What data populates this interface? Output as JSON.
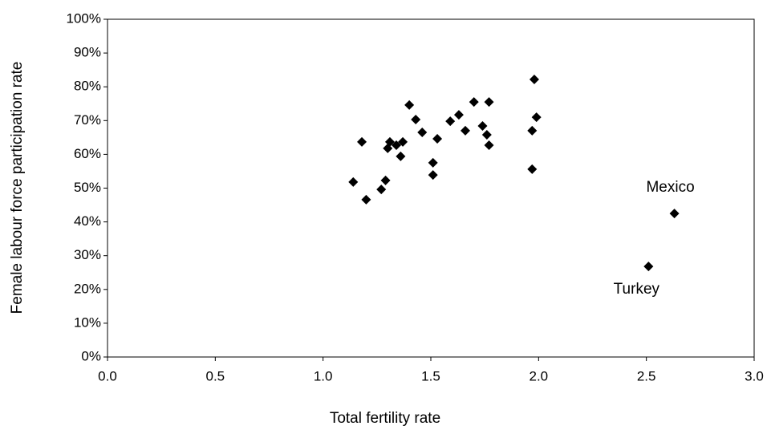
{
  "chart_data": {
    "type": "scatter",
    "x_label": "Total fertility rate",
    "y_label": "Female labour force participation rate",
    "series": [
      {
        "color": "#000000",
        "x": [
          1.14,
          1.18,
          1.2,
          1.27,
          1.29,
          1.31,
          1.3,
          1.34,
          1.37,
          1.36,
          1.4,
          1.43,
          1.46,
          1.51,
          1.51,
          1.53,
          1.59,
          1.63,
          1.66,
          1.7,
          1.74,
          1.76,
          1.77,
          1.77,
          1.97,
          1.97,
          1.98,
          1.99,
          2.51,
          2.63
        ],
        "values": [
          51.8,
          63.7,
          46.6,
          49.6,
          52.3,
          63.7,
          61.8,
          62.7,
          63.7,
          59.4,
          74.6,
          70.3,
          66.5,
          53.9,
          57.5,
          64.6,
          69.8,
          71.7,
          67.0,
          75.5,
          68.4,
          65.8,
          75.5,
          62.7,
          55.6,
          67.0,
          82.2,
          71.0,
          26.8,
          42.5
        ],
        "point_labels": [
          null,
          null,
          null,
          null,
          null,
          null,
          null,
          null,
          null,
          null,
          null,
          null,
          null,
          null,
          null,
          null,
          null,
          null,
          null,
          null,
          null,
          null,
          null,
          null,
          null,
          null,
          null,
          null,
          "Turkey",
          "Mexico"
        ]
      }
    ],
    "xlim": [
      0,
      3
    ],
    "xticks": [
      {
        "value": 0,
        "label": "0.0"
      },
      {
        "value": 0.5,
        "label": "0.5"
      },
      {
        "value": 1,
        "label": "1.0"
      },
      {
        "value": 1.5,
        "label": "1.5"
      },
      {
        "value": 2,
        "label": "2.0"
      },
      {
        "value": 2.5,
        "label": "2.5"
      },
      {
        "value": 3,
        "label": "3.0"
      }
    ],
    "ylim": [
      0,
      100
    ],
    "yticks": [
      {
        "value": 0,
        "label": "0%"
      },
      {
        "value": 10,
        "label": "10%"
      },
      {
        "value": 20,
        "label": "20%"
      },
      {
        "value": 30,
        "label": "30%"
      },
      {
        "value": 40,
        "label": "40%"
      },
      {
        "value": 50,
        "label": "50%"
      },
      {
        "value": 60,
        "label": "60%"
      },
      {
        "value": 70,
        "label": "70%"
      },
      {
        "value": 80,
        "label": "80%"
      },
      {
        "value": 90,
        "label": "90%"
      },
      {
        "value": 100,
        "label": "100%"
      }
    ],
    "grid": false
  }
}
